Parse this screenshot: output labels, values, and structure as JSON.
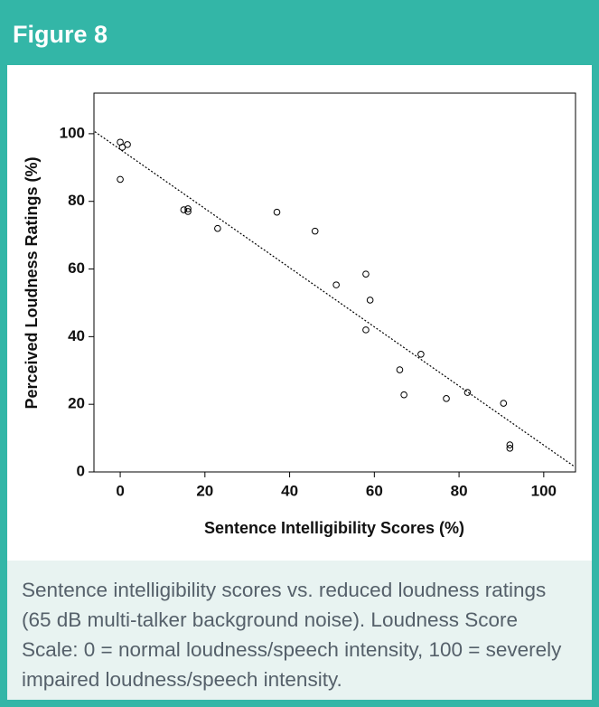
{
  "header": {
    "title": "Figure 8"
  },
  "caption": "Sentence intelligibility scores vs. reduced loudness ratings (65 dB multi-talker background noise). Loudness Score Scale: 0 = normal loudness/speech intensity, 100 = severely impaired loudness/speech intensity.",
  "chart_data": {
    "type": "scatter",
    "x_label": "Sentence Intelligibility Scores (%)",
    "y_label": "Perceived Loudness Ratings (%)",
    "x": [
      0,
      0.5,
      1.7,
      0,
      15,
      16,
      16,
      23,
      37,
      46,
      51,
      58,
      59,
      58,
      66,
      67,
      71,
      77,
      82,
      90.5,
      92,
      92
    ],
    "y": [
      97.5,
      96,
      96.8,
      86.5,
      77.5,
      77.8,
      77,
      72,
      76.8,
      71.2,
      55.3,
      58.5,
      50.8,
      42,
      30.2,
      22.8,
      34.8,
      21.7,
      23.5,
      20.3,
      8,
      7
    ],
    "color": "#000000",
    "trendline": {
      "x": [
        -6,
        107
      ],
      "y": [
        100.6,
        1.8
      ]
    },
    "xlim": [
      -6.2,
      107.5
    ],
    "ylim": [
      0,
      112
    ],
    "xticks": [
      0,
      20,
      40,
      60,
      80,
      100
    ],
    "yticks": [
      0,
      20,
      40,
      60,
      80,
      100
    ],
    "grid": false
  }
}
